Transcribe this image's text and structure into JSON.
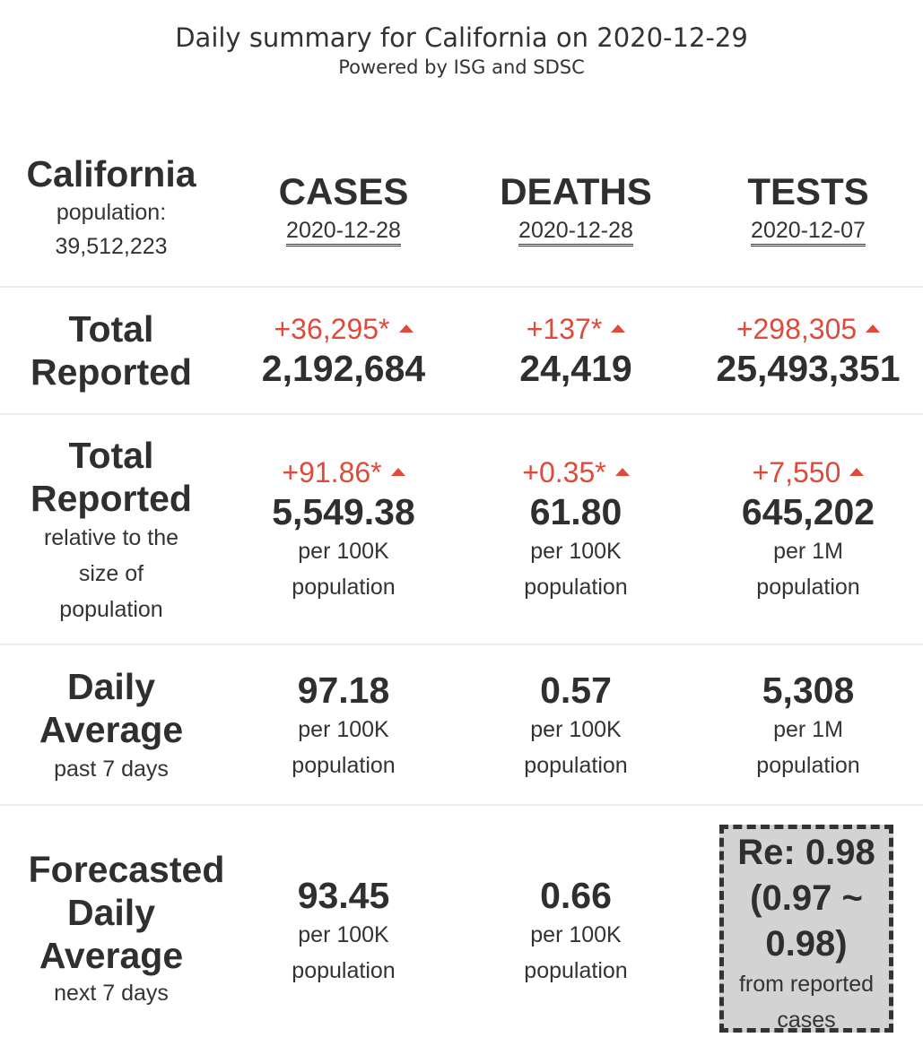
{
  "header": {
    "title": "Daily summary for California on 2020-12-29",
    "subtitle": "Powered by ISG and SDSC"
  },
  "region": {
    "name": "California",
    "population_label": "population:",
    "population": "39,512,223"
  },
  "columns": [
    {
      "name": "CASES",
      "date": "2020-12-28"
    },
    {
      "name": "DEATHS",
      "date": "2020-12-28"
    },
    {
      "name": "TESTS",
      "date": "2020-12-07"
    }
  ],
  "rows": {
    "total": {
      "label_line1": "Total",
      "label_line2": "Reported",
      "cells": [
        {
          "delta": "+36,295*",
          "value": "2,192,684"
        },
        {
          "delta": "+137*",
          "value": "24,419"
        },
        {
          "delta": "+298,305",
          "value": "25,493,351"
        }
      ]
    },
    "relative": {
      "label_line1": "Total",
      "label_line2": "Reported",
      "sub1": "relative to the",
      "sub2": "size of",
      "sub3": "population",
      "cells": [
        {
          "delta": "+91.86*",
          "value": "5,549.38",
          "unit1": "per 100K",
          "unit2": "population"
        },
        {
          "delta": "+0.35*",
          "value": "61.80",
          "unit1": "per 100K",
          "unit2": "population"
        },
        {
          "delta": "+7,550",
          "value": "645,202",
          "unit1": "per 1M",
          "unit2": "population"
        }
      ]
    },
    "daily": {
      "label_line1": "Daily",
      "label_line2": "Average",
      "sub": "past 7 days",
      "cells": [
        {
          "value": "97.18",
          "unit1": "per 100K",
          "unit2": "population"
        },
        {
          "value": "0.57",
          "unit1": "per 100K",
          "unit2": "population"
        },
        {
          "value": "5,308",
          "unit1": "per 1M",
          "unit2": "population"
        }
      ]
    },
    "forecast": {
      "label_line1": "Forecasted",
      "label_line2": "Daily",
      "label_line3": "Average",
      "sub": "next 7 days",
      "cells": [
        {
          "value": "93.45",
          "unit1": "per 100K",
          "unit2": "population"
        },
        {
          "value": "0.66",
          "unit1": "per 100K",
          "unit2": "population"
        }
      ],
      "re": {
        "line1": "Re: 0.98",
        "line2": "(0.97 ~",
        "line3": "0.98)",
        "sub1": "from reported",
        "sub2": "cases"
      }
    }
  },
  "colors": {
    "delta": "#e04a3a",
    "text": "#333333",
    "re_background": "#d3d3d3"
  }
}
